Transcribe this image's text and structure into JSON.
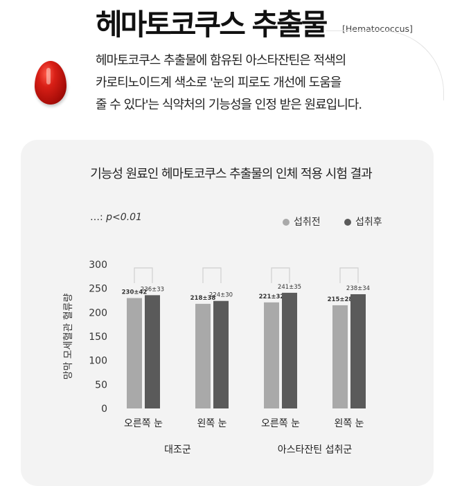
{
  "header": {
    "title": "헤마토코쿠스 추출물",
    "subtitle": "[Hematococcus]",
    "description_lines": [
      "헤마토코쿠스 추출물에 함유된 아스타잔틴은 적색의",
      "카로티노이드계 색소로 '눈의 피로도 개선에 도움을",
      "줄 수 있다'는 식약처의 기능성을 인정 받은 원료입니다."
    ]
  },
  "colors": {
    "before": "#a9a9a9",
    "after": "#5a5a5a",
    "card_bg": "#f3f3f3"
  },
  "chart_data": {
    "type": "bar",
    "title": "기능성 원료인 헤마토코쿠스 추출물의 인체 적용 시험 결과",
    "significance_note": {
      "symbol": "…:",
      "text": "p<0.01"
    },
    "ylabel": "망막 모세혈관 혈류량",
    "ylim": [
      0,
      300
    ],
    "yticks": [
      0,
      50,
      100,
      150,
      200,
      250,
      300
    ],
    "categories": [
      "오른쪽 눈",
      "왼쪽 눈",
      "오른쪽 눈",
      "왼쪽 눈"
    ],
    "groups": [
      {
        "label": "대조군",
        "categories": [
          0,
          1
        ]
      },
      {
        "label": "아스타잔틴 섭취군",
        "categories": [
          2,
          3
        ]
      }
    ],
    "series": [
      {
        "name": "섭취전",
        "values": [
          230,
          218,
          221,
          215
        ],
        "labels": [
          "230±42",
          "218±38",
          "221±32",
          "215±28"
        ]
      },
      {
        "name": "섭취후",
        "values": [
          236,
          224,
          241,
          238
        ],
        "labels": [
          "236±33",
          "224±30",
          "241±35",
          "238±34"
        ]
      }
    ],
    "legend": "top-right",
    "grid": false
  }
}
